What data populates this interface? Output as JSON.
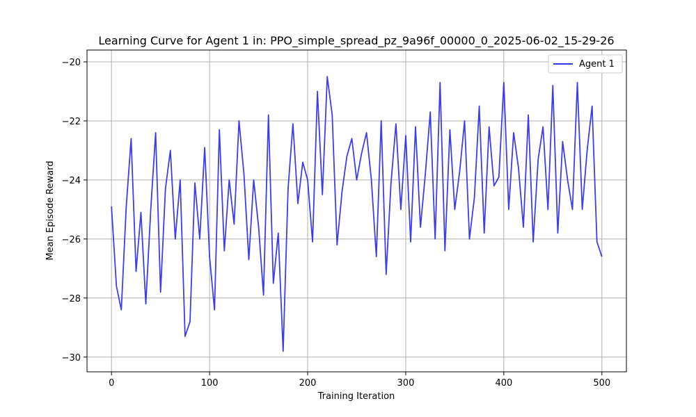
{
  "chart_data": {
    "type": "line",
    "title": "Learning Curve for Agent 1 in: PPO_simple_spread_pz_9a96f_00000_0_2025-06-02_15-29-26",
    "xlabel": "Training Iteration",
    "ylabel": "Mean Episode Reward",
    "xlim": [
      -25,
      525
    ],
    "ylim": [
      -30.5,
      -19.6
    ],
    "xticks": [
      0,
      100,
      200,
      300,
      400,
      500
    ],
    "yticks": [
      -30,
      -28,
      -26,
      -24,
      -22,
      -20
    ],
    "xtick_labels": [
      "0",
      "100",
      "200",
      "300",
      "400",
      "500"
    ],
    "ytick_labels": [
      "−30",
      "−28",
      "−26",
      "−24",
      "−22",
      "−20"
    ],
    "grid": true,
    "legend": {
      "placement": "top-right",
      "entries": [
        "Agent 1"
      ]
    },
    "series": [
      {
        "name": "Agent 1",
        "color": "#3333ee",
        "x": [
          0,
          5,
          10,
          15,
          20,
          25,
          30,
          35,
          40,
          45,
          50,
          55,
          60,
          65,
          70,
          75,
          80,
          85,
          90,
          95,
          100,
          105,
          110,
          115,
          120,
          125,
          130,
          135,
          140,
          145,
          150,
          155,
          160,
          165,
          170,
          175,
          180,
          185,
          190,
          195,
          200,
          205,
          210,
          215,
          220,
          225,
          230,
          235,
          240,
          245,
          250,
          255,
          260,
          265,
          270,
          275,
          280,
          285,
          290,
          295,
          300,
          305,
          310,
          315,
          320,
          325,
          330,
          335,
          340,
          345,
          350,
          355,
          360,
          365,
          370,
          375,
          380,
          385,
          390,
          395,
          400,
          405,
          410,
          415,
          420,
          425,
          430,
          435,
          440,
          445,
          450,
          455,
          460,
          465,
          470,
          475,
          480,
          485,
          490,
          495,
          500
        ],
        "y": [
          -24.9,
          -27.6,
          -28.4,
          -24.9,
          -22.6,
          -27.1,
          -25.1,
          -28.2,
          -25.0,
          -22.4,
          -27.8,
          -24.3,
          -23.0,
          -26.0,
          -24.0,
          -29.3,
          -28.8,
          -24.1,
          -26.0,
          -22.9,
          -26.6,
          -28.4,
          -22.3,
          -26.4,
          -24.0,
          -25.5,
          -22.0,
          -23.8,
          -26.7,
          -24.0,
          -25.6,
          -27.9,
          -21.8,
          -27.5,
          -25.8,
          -29.8,
          -24.3,
          -22.1,
          -24.8,
          -23.4,
          -24.0,
          -26.1,
          -21.0,
          -24.5,
          -20.5,
          -21.8,
          -26.2,
          -24.4,
          -23.2,
          -22.6,
          -24.0,
          -23.1,
          -22.4,
          -24.0,
          -26.6,
          -22.0,
          -27.2,
          -24.1,
          -22.1,
          -25.0,
          -22.5,
          -26.1,
          -22.2,
          -25.6,
          -23.8,
          -21.7,
          -26.0,
          -20.7,
          -26.4,
          -22.3,
          -25.0,
          -23.7,
          -22.0,
          -26.0,
          -24.6,
          -21.5,
          -25.8,
          -22.2,
          -24.2,
          -23.9,
          -20.7,
          -25.0,
          -22.4,
          -23.6,
          -25.6,
          -21.8,
          -26.1,
          -23.3,
          -22.2,
          -25.0,
          -20.8,
          -25.8,
          -22.7,
          -24.0,
          -25.0,
          -20.7,
          -25.0,
          -23.0,
          -21.5,
          -26.1,
          -26.6
        ]
      }
    ]
  }
}
